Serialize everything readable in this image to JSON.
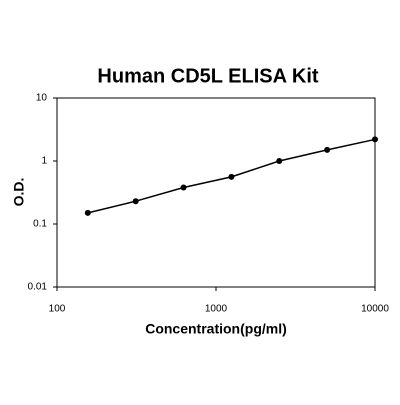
{
  "chart_data": {
    "type": "line",
    "title": "Human CD5L ELISA Kit",
    "x_label": "Concentration(pg/ml)",
    "y_label": "O.D.",
    "x": [
      156.25,
      312.5,
      625,
      1250,
      2500,
      5000,
      10000
    ],
    "series": [
      {
        "values": [
          0.15,
          0.23,
          0.38,
          0.56,
          1.0,
          1.5,
          2.2
        ],
        "color": "#000000"
      }
    ],
    "xlim": [
      100,
      10000
    ],
    "ylim": [
      0.01,
      10
    ],
    "xticks": [
      100,
      1000,
      10000
    ],
    "yticks": [
      0.01,
      0.1,
      1,
      10
    ],
    "log_x": true,
    "log_y": true,
    "grid": false
  }
}
